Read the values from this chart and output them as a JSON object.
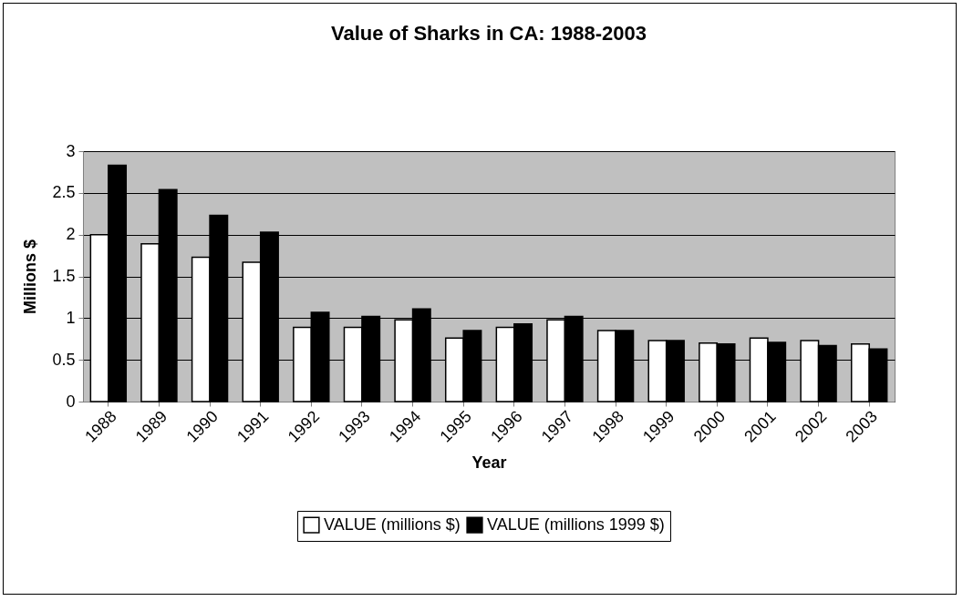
{
  "chart_data": {
    "type": "bar",
    "title": "Value of Sharks in CA:  1988-2003",
    "xlabel": "Year",
    "ylabel": "Millions $",
    "categories": [
      "1988",
      "1989",
      "1990",
      "1991",
      "1992",
      "1993",
      "1994",
      "1995",
      "1996",
      "1997",
      "1998",
      "1999",
      "2000",
      "2001",
      "2002",
      "2003"
    ],
    "series": [
      {
        "name": "VALUE (millions $)",
        "color": "#ffffff",
        "values": [
          2.0,
          1.89,
          1.73,
          1.67,
          0.89,
          0.89,
          0.98,
          0.76,
          0.89,
          0.98,
          0.85,
          0.73,
          0.7,
          0.76,
          0.73,
          0.69
        ]
      },
      {
        "name": "VALUE (millions 1999 $)",
        "color": "#000000",
        "values": [
          2.83,
          2.54,
          2.23,
          2.03,
          1.07,
          1.02,
          1.11,
          0.85,
          0.93,
          1.02,
          0.85,
          0.73,
          0.69,
          0.71,
          0.67,
          0.63
        ]
      }
    ],
    "ylim": [
      0,
      3
    ],
    "yticks": [
      0,
      0.5,
      1,
      1.5,
      2,
      2.5,
      3
    ],
    "grid": "y",
    "legend": "bottom"
  }
}
